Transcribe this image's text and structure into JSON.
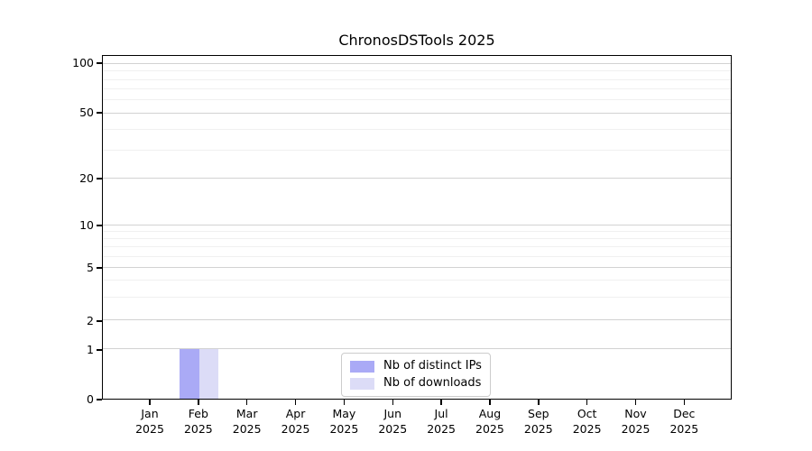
{
  "chart_data": {
    "type": "bar",
    "title": "ChronosDSTools 2025",
    "categories": [
      "Jan 2025",
      "Feb 2025",
      "Mar 2025",
      "Apr 2025",
      "May 2025",
      "Jun 2025",
      "Jul 2025",
      "Aug 2025",
      "Sep 2025",
      "Oct 2025",
      "Nov 2025",
      "Dec 2025"
    ],
    "series": [
      {
        "name": "Nb of distinct IPs",
        "color": "#aaaaf6",
        "values": [
          0,
          1,
          0,
          0,
          0,
          0,
          0,
          0,
          0,
          0,
          0,
          0
        ]
      },
      {
        "name": "Nb of downloads",
        "color": "#dcdcf7",
        "values": [
          0,
          1,
          0,
          0,
          0,
          0,
          0,
          0,
          0,
          0,
          0,
          0
        ]
      }
    ],
    "yscale": "symlog",
    "yticks": [
      0,
      1,
      2,
      5,
      10,
      20,
      50,
      100
    ],
    "ylim": [
      0,
      110
    ],
    "xlabel": "",
    "ylabel": "",
    "legend_position": "lower center",
    "grid": "horizontal"
  },
  "axes": {
    "ytick_labels": [
      "0",
      "1",
      "2",
      "5",
      "10",
      "20",
      "50",
      "100"
    ],
    "ytick_pct": [
      0,
      14.4,
      22.8,
      38.2,
      50.5,
      64.1,
      83.2,
      97.6
    ],
    "minor_gridline_values": [
      3,
      4,
      6,
      7,
      8,
      9,
      30,
      40,
      60,
      70,
      80,
      90
    ],
    "minor_gridline_pct": [
      29.6,
      34.6,
      41.4,
      44.2,
      46.6,
      48.7,
      72.5,
      78.5,
      87.2,
      90.3,
      92.9,
      95.5
    ]
  },
  "colors": {
    "background": "#ffffff",
    "spine": "#000000",
    "grid_major": "#d2d2d2",
    "grid_minor": "#f0f0f0",
    "legend_border": "#cccccc",
    "text": "#000000"
  }
}
